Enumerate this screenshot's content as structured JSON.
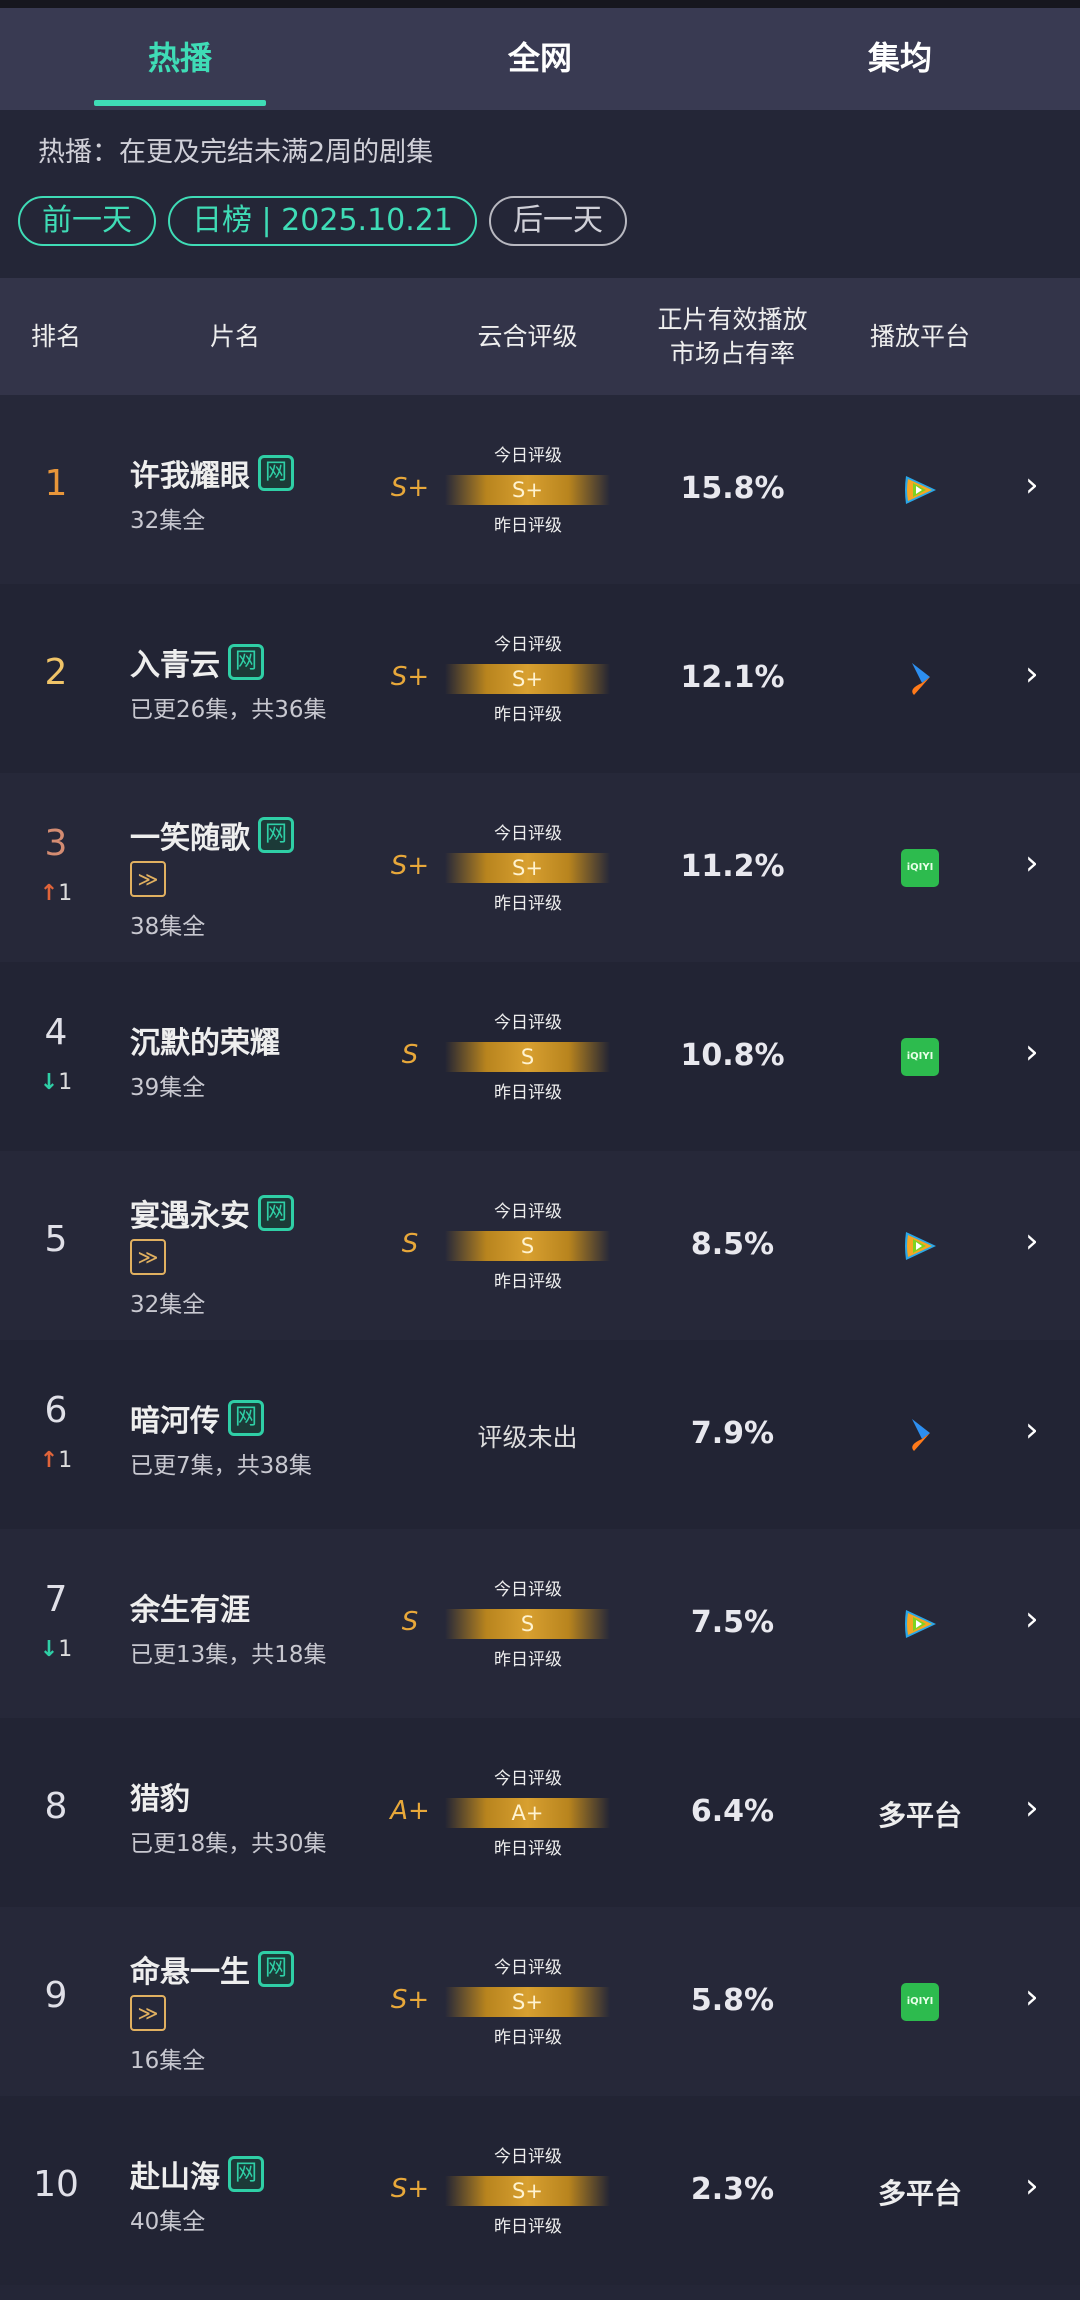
{
  "tabs": [
    {
      "label": "热播",
      "active": true
    },
    {
      "label": "全网",
      "active": false
    },
    {
      "label": "集均",
      "active": false
    }
  ],
  "description": "热播：在更及完结未满2周的剧集",
  "date_nav": {
    "prev": "前一天",
    "current": "日榜 | 2025.10.21",
    "next": "后一天"
  },
  "table_header": {
    "rank": "排名",
    "title": "片名",
    "rating": "云合评级",
    "share": "正片有效播放\n市场占有率",
    "platform": "播放平台"
  },
  "rating_labels": {
    "today": "今日评级",
    "yesterday": "昨日评级"
  },
  "colors": {
    "accent": "#3fdcb6",
    "gold": "#e8a83a",
    "up": "#e0643a",
    "down": "#2fcfa6"
  },
  "rows": [
    {
      "rank": "1",
      "title": "许我耀眼",
      "wang": true,
      "kuai": false,
      "episodes": "32集全",
      "rating": "S+",
      "share": "15.8%",
      "platform": "tencent-video-icon",
      "change": null
    },
    {
      "rank": "2",
      "title": "入青云",
      "wang": true,
      "kuai": false,
      "episodes": "已更26集，共36集",
      "rating": "S+",
      "share": "12.1%",
      "platform": "youku-icon",
      "change": null
    },
    {
      "rank": "3",
      "title": "一笑随歌",
      "wang": true,
      "kuai": true,
      "episodes": "38集全",
      "rating": "S+",
      "share": "11.2%",
      "platform": "iqiyi-icon",
      "change": {
        "dir": "up",
        "value": "1"
      }
    },
    {
      "rank": "4",
      "title": "沉默的荣耀",
      "wang": false,
      "kuai": false,
      "episodes": "39集全",
      "rating": "S",
      "share": "10.8%",
      "platform": "iqiyi-icon",
      "change": {
        "dir": "down",
        "value": "1"
      }
    },
    {
      "rank": "5",
      "title": "宴遇永安",
      "wang": true,
      "kuai": true,
      "episodes": "32集全",
      "rating": "S",
      "share": "8.5%",
      "platform": "tencent-video-icon",
      "change": null
    },
    {
      "rank": "6",
      "title": "暗河传",
      "wang": true,
      "kuai": false,
      "episodes": "已更7集，共38集",
      "rating": null,
      "rating_text": "评级未出",
      "share": "7.9%",
      "platform": "youku-icon",
      "change": {
        "dir": "up",
        "value": "1"
      }
    },
    {
      "rank": "7",
      "title": "余生有涯",
      "wang": false,
      "kuai": false,
      "episodes": "已更13集，共18集",
      "rating": "S",
      "share": "7.5%",
      "platform": "tencent-video-icon",
      "change": {
        "dir": "down",
        "value": "1"
      }
    },
    {
      "rank": "8",
      "title": "猎豹",
      "wang": false,
      "kuai": false,
      "episodes": "已更18集，共30集",
      "rating": "A+",
      "share": "6.4%",
      "platform_text": "多平台",
      "change": null
    },
    {
      "rank": "9",
      "title": "命悬一生",
      "wang": true,
      "kuai": true,
      "episodes": "16集全",
      "rating": "S+",
      "share": "5.8%",
      "platform": "iqiyi-icon",
      "change": null
    },
    {
      "rank": "10",
      "title": "赴山海",
      "wang": true,
      "kuai": false,
      "episodes": "40集全",
      "rating": "S+",
      "share": "2.3%",
      "platform_text": "多平台",
      "change": null
    }
  ],
  "badges": {
    "wang": "网",
    "kuai": "≫",
    "iqiyi": "iQIYI",
    "up_arrow": "↑",
    "down_arrow": "↓",
    "chevron": "›"
  }
}
